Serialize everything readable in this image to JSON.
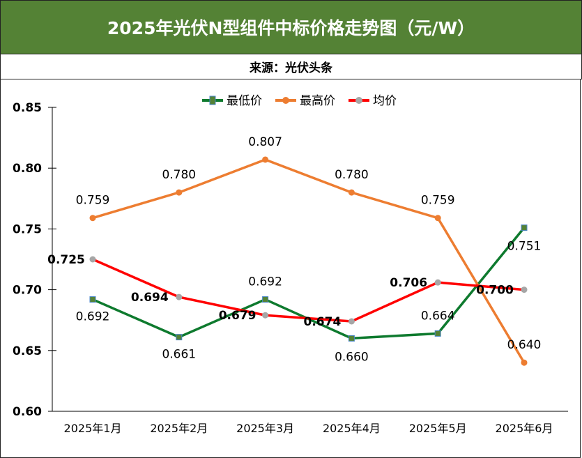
{
  "header": {
    "title": "2025年光伏N型组件中标价格走势图（元/W）",
    "source": "来源：光伏头条"
  },
  "chart_data": {
    "type": "line",
    "title": "2025年光伏N型组件中标价格走势图（元/W）",
    "categories": [
      "2025年1月",
      "2025年2月",
      "2025年3月",
      "2025年4月",
      "2025年5月",
      "2025年6月"
    ],
    "ylim": [
      0.6,
      0.85
    ],
    "yticks": [
      "0.60",
      "0.65",
      "0.70",
      "0.75",
      "0.80",
      "0.85"
    ],
    "legend_position": "top",
    "grid": false,
    "series": [
      {
        "name": "最低价",
        "color": "#0E7A2E",
        "marker": "square",
        "values": [
          0.692,
          0.661,
          0.692,
          0.66,
          0.664,
          0.751
        ],
        "labels": [
          "0.692",
          "0.661",
          "0.692",
          "0.660",
          "0.664",
          "0.751"
        ]
      },
      {
        "name": "最高价",
        "color": "#ED7D31",
        "marker": "circle",
        "values": [
          0.759,
          0.78,
          0.807,
          0.78,
          0.759,
          0.64
        ],
        "labels": [
          "0.759",
          "0.780",
          "0.807",
          "0.780",
          "0.759",
          "0.640"
        ]
      },
      {
        "name": "均价",
        "color": "#FF0000",
        "marker": "circle-gray",
        "values": [
          0.725,
          0.694,
          0.679,
          0.674,
          0.706,
          0.7
        ],
        "labels": [
          "0.725",
          "0.694",
          "0.679",
          "0.674",
          "0.706",
          "0.700"
        ]
      }
    ]
  }
}
